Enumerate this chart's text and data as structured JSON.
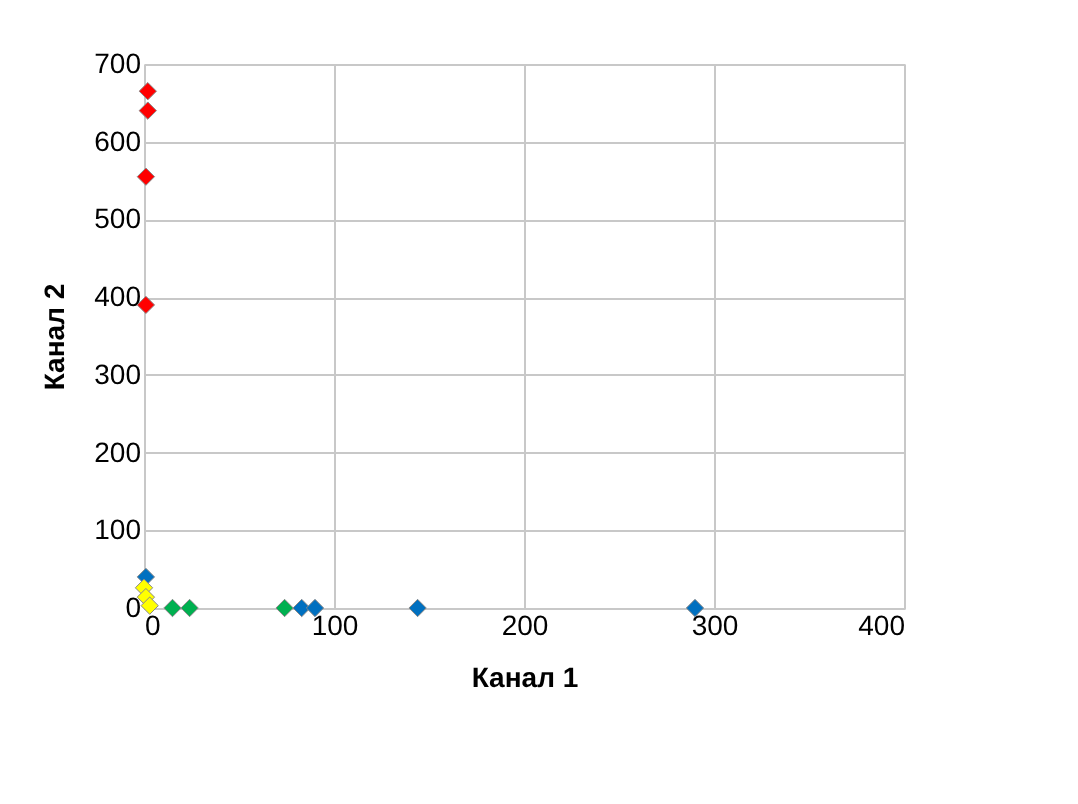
{
  "chart_data": {
    "type": "scatter",
    "xlabel": "Канал 1",
    "ylabel": "Канал 2",
    "xlim": [
      0,
      400
    ],
    "xticks": [
      0,
      100,
      200,
      300,
      400
    ],
    "ylim": [
      0,
      700
    ],
    "yticks": [
      0,
      100,
      200,
      300,
      400,
      500,
      600,
      700
    ],
    "grid": true,
    "marker": "diamond",
    "legend": false,
    "series": [
      {
        "color": "#0070c0",
        "x": [
          1,
          83,
          90,
          144,
          290
        ],
        "values": [
          40,
          0,
          0,
          0,
          0
        ]
      },
      {
        "color": "#00b050",
        "x": [
          15,
          24,
          74
        ],
        "values": [
          0,
          0,
          0
        ]
      },
      {
        "color": "#ffff00",
        "x": [
          0,
          1,
          3
        ],
        "values": [
          26,
          14,
          3
        ]
      },
      {
        "color": "#ff0000",
        "x": [
          2,
          2,
          1,
          1
        ],
        "values": [
          665,
          640,
          555,
          390
        ]
      }
    ]
  }
}
